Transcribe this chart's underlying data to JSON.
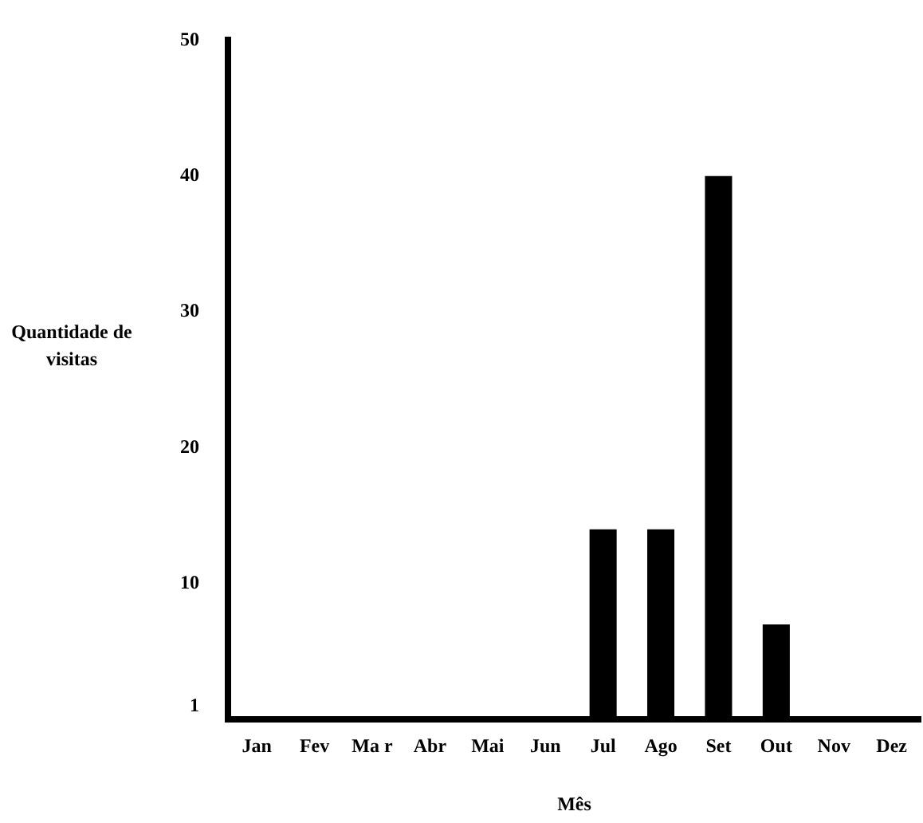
{
  "chart_data": {
    "type": "bar",
    "xlabel": "Mês",
    "ylabel": "Quantidade de visitas",
    "categories": [
      "Jan",
      "Fev",
      "Ma r",
      "Abr",
      "Mai",
      "Jun",
      "Jul",
      "Ago",
      "Set",
      "Out",
      "Nov",
      "Dez"
    ],
    "values": [
      0,
      0,
      0,
      0,
      0,
      0,
      14,
      14,
      40,
      7,
      0,
      0
    ],
    "color": "#000000",
    "ylim": [
      0,
      50
    ],
    "yticks": [
      1,
      10,
      20,
      30,
      40,
      50
    ],
    "grid": false,
    "legend": false
  }
}
